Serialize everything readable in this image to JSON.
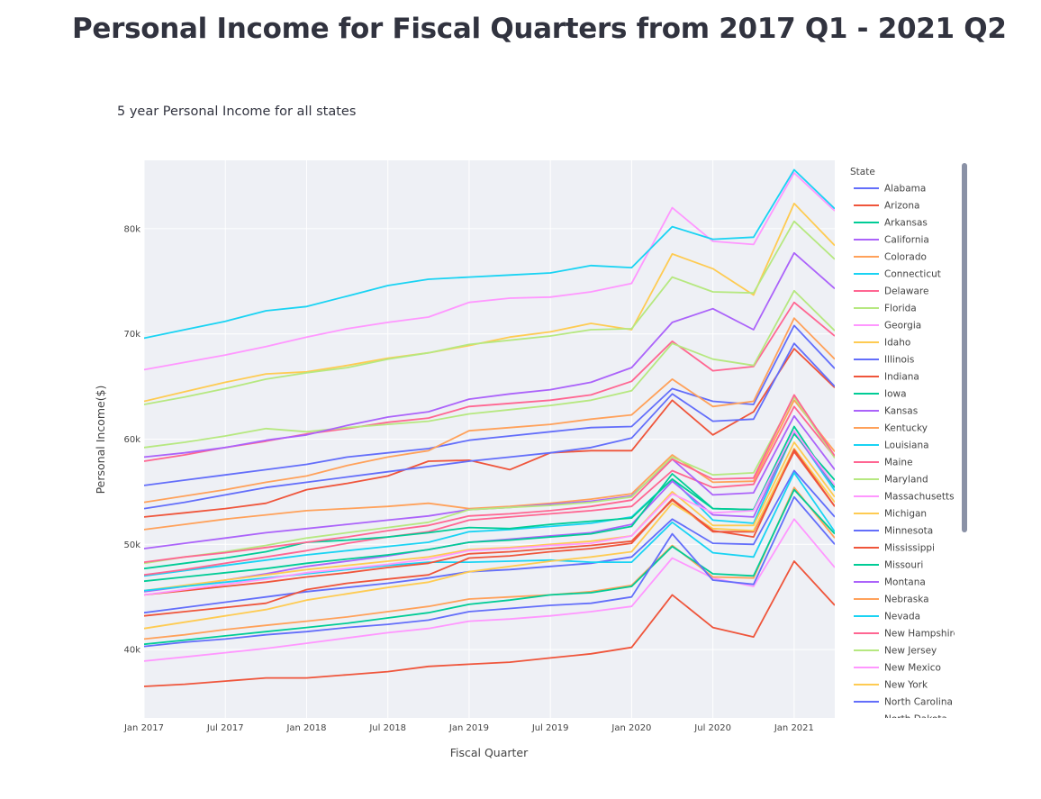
{
  "page": {
    "title": "Personal Income for Fiscal Quarters from 2017 Q1 - 2021 Q2"
  },
  "chart_data": {
    "type": "line",
    "title": "5 year Personal Income for all states",
    "xlabel": "Fiscal Quarter",
    "ylabel": "Personal Income($)",
    "legend_title": "State",
    "legend_placement": "right",
    "grid": true,
    "plot_background": "#eef0f5",
    "ylim": [
      33500,
      86500
    ],
    "y_ticks": [
      40000,
      50000,
      60000,
      70000,
      80000
    ],
    "y_tick_labels": [
      "40k",
      "50k",
      "60k",
      "70k",
      "80k"
    ],
    "x_tick_labels": [
      "Jan 2017",
      "Jul 2017",
      "Jan 2018",
      "Jul 2018",
      "Jan 2019",
      "Jul 2019",
      "Jan 2020",
      "Jul 2020",
      "Jan 2021"
    ],
    "x": [
      "2017 Q1",
      "2017 Q2",
      "2017 Q3",
      "2017 Q4",
      "2018 Q1",
      "2018 Q2",
      "2018 Q3",
      "2018 Q4",
      "2019 Q1",
      "2019 Q2",
      "2019 Q3",
      "2019 Q4",
      "2020 Q1",
      "2020 Q2",
      "2020 Q3",
      "2020 Q4",
      "2021 Q1",
      "2021 Q2"
    ],
    "series": [
      {
        "name": "Alabama",
        "color": "#636efa",
        "values": [
          40300,
          40700,
          41000,
          41400,
          41700,
          42100,
          42400,
          42800,
          43600,
          43900,
          44200,
          44400,
          45000,
          51000,
          46600,
          46200,
          54500,
          50000
        ]
      },
      {
        "name": "Arizona",
        "color": "#ef553b",
        "values": [
          43200,
          43600,
          44000,
          44400,
          45700,
          46300,
          46700,
          47100,
          48700,
          48900,
          49300,
          49600,
          50100,
          54300,
          51300,
          50700,
          59000,
          53600
        ]
      },
      {
        "name": "Arkansas",
        "color": "#00cc96",
        "values": [
          40500,
          40900,
          41300,
          41700,
          42100,
          42500,
          43000,
          43500,
          44300,
          44700,
          45200,
          45400,
          46000,
          49800,
          47200,
          47000,
          55200,
          51000
        ]
      },
      {
        "name": "California",
        "color": "#ab63fa",
        "values": [
          58300,
          58700,
          59200,
          59900,
          60400,
          61300,
          62100,
          62600,
          63800,
          64300,
          64700,
          65400,
          66800,
          71100,
          72400,
          70400,
          77700,
          74300
        ]
      },
      {
        "name": "Colorado",
        "color": "#ffa15a",
        "values": [
          54000,
          54600,
          55200,
          55900,
          56500,
          57500,
          58300,
          58900,
          60800,
          61100,
          61400,
          61900,
          62300,
          65700,
          63100,
          63600,
          71500,
          67600
        ]
      },
      {
        "name": "Connecticut",
        "color": "#19d3f3",
        "values": [
          69600,
          70400,
          71200,
          72200,
          72600,
          73600,
          74600,
          75200,
          75400,
          75600,
          75800,
          76500,
          76300,
          80200,
          79000,
          79200,
          85600,
          81900
        ]
      },
      {
        "name": "Delaware",
        "color": "#ff6692",
        "values": [
          48300,
          48800,
          49200,
          49700,
          50200,
          50700,
          51300,
          51800,
          52700,
          52900,
          53200,
          53600,
          54200,
          58100,
          56200,
          56300,
          64200,
          58400
        ]
      },
      {
        "name": "Florida",
        "color": "#b6e880",
        "values": [
          48200,
          48800,
          49300,
          49900,
          50600,
          51100,
          51600,
          52100,
          53300,
          53500,
          53700,
          54000,
          54500,
          58300,
          56600,
          56800,
          64000,
          58200
        ]
      },
      {
        "name": "Georgia",
        "color": "#ff97ff",
        "values": [
          45200,
          45700,
          46200,
          46700,
          47300,
          47700,
          48100,
          48600,
          49400,
          49600,
          49900,
          50100,
          50800,
          54800,
          53000,
          53200,
          60800,
          55600
        ]
      },
      {
        "name": "Idaho",
        "color": "#fecb52",
        "values": [
          42000,
          42600,
          43200,
          43800,
          44700,
          45300,
          45900,
          46400,
          47400,
          47900,
          48400,
          48800,
          49300,
          53900,
          51500,
          51300,
          59100,
          54000
        ]
      },
      {
        "name": "Illinois",
        "color": "#636efa",
        "values": [
          55600,
          56100,
          56600,
          57100,
          57600,
          58300,
          58700,
          59100,
          59900,
          60300,
          60700,
          61100,
          61200,
          64800,
          63600,
          63300,
          70800,
          66700
        ]
      },
      {
        "name": "Indiana",
        "color": "#ef553b",
        "values": [
          45200,
          45600,
          46000,
          46400,
          46900,
          47300,
          47800,
          48200,
          49100,
          49300,
          49600,
          49900,
          50300,
          54200,
          51200,
          51200,
          58800,
          53600
        ]
      },
      {
        "name": "Iowa",
        "color": "#00cc96",
        "values": [
          47700,
          48200,
          48700,
          49300,
          50200,
          50400,
          50700,
          51100,
          51600,
          51500,
          51900,
          52200,
          52500,
          56200,
          53400,
          53300,
          61200,
          55400
        ]
      },
      {
        "name": "Kansas",
        "color": "#ab63fa",
        "values": [
          49600,
          50100,
          50600,
          51100,
          51500,
          51900,
          52300,
          52700,
          53300,
          53500,
          53800,
          54100,
          54600,
          58100,
          54700,
          54900,
          62200,
          57100
        ]
      },
      {
        "name": "Kentucky",
        "color": "#ffa15a",
        "values": [
          41000,
          41400,
          41900,
          42300,
          42700,
          43100,
          43600,
          44100,
          44800,
          45000,
          45200,
          45500,
          46100,
          49900,
          46900,
          46800,
          55400,
          50600
        ]
      },
      {
        "name": "Louisiana",
        "color": "#19d3f3",
        "values": [
          45600,
          46000,
          46400,
          46800,
          47200,
          47600,
          48000,
          48300,
          48300,
          48400,
          48500,
          48300,
          48300,
          52100,
          49200,
          48800,
          56800,
          51200
        ]
      },
      {
        "name": "Maine",
        "color": "#ff6692",
        "values": [
          47100,
          47600,
          48200,
          48800,
          49400,
          50100,
          50700,
          51200,
          52300,
          52600,
          52900,
          53200,
          53600,
          57000,
          55400,
          55700,
          63100,
          58300
        ]
      },
      {
        "name": "Maryland",
        "color": "#b6e880",
        "values": [
          59200,
          59700,
          60300,
          61000,
          60700,
          61100,
          61400,
          61700,
          62400,
          62800,
          63200,
          63700,
          64600,
          69100,
          67600,
          67000,
          74100,
          70300
        ]
      },
      {
        "name": "Massachusetts",
        "color": "#ff97ff",
        "values": [
          66600,
          67300,
          68000,
          68800,
          69700,
          70500,
          71100,
          71600,
          73000,
          73400,
          73500,
          74000,
          74800,
          82000,
          78800,
          78500,
          85300,
          81700
        ]
      },
      {
        "name": "Michigan",
        "color": "#fecb52",
        "values": [
          45600,
          46100,
          46600,
          47100,
          47600,
          48000,
          48400,
          48800,
          49500,
          49700,
          50000,
          50300,
          50800,
          55000,
          51800,
          51800,
          59700,
          54500
        ]
      },
      {
        "name": "Minnesota",
        "color": "#636efa",
        "values": [
          53400,
          54000,
          54700,
          55400,
          55900,
          56400,
          56900,
          57400,
          57900,
          58300,
          58700,
          59200,
          60100,
          64300,
          61700,
          61900,
          69100,
          65000
        ]
      },
      {
        "name": "Mississippi",
        "color": "#ef553b",
        "values": [
          36500,
          36700,
          37000,
          37300,
          37300,
          37600,
          37900,
          38400,
          38600,
          38800,
          39200,
          39600,
          40200,
          45200,
          42100,
          41200,
          48400,
          44200
        ]
      },
      {
        "name": "Missouri",
        "color": "#00cc96",
        "values": [
          46500,
          46900,
          47300,
          47700,
          48200,
          48600,
          49000,
          49500,
          50200,
          50400,
          50700,
          51000,
          51700,
          56700,
          53400,
          53300,
          60500,
          56100
        ]
      },
      {
        "name": "Montana",
        "color": "#ab63fa",
        "values": [
          45500,
          46000,
          46600,
          47200,
          47900,
          48400,
          48900,
          49500,
          50200,
          50500,
          50800,
          51100,
          51900,
          56000,
          52800,
          52600,
          60600,
          55400
        ]
      },
      {
        "name": "Nebraska",
        "color": "#ffa15a",
        "values": [
          51400,
          51900,
          52400,
          52800,
          53200,
          53400,
          53600,
          53900,
          53400,
          53600,
          53900,
          54300,
          54800,
          58500,
          55900,
          56000,
          63700,
          58800
        ]
      },
      {
        "name": "Nevada",
        "color": "#19d3f3",
        "values": [
          47000,
          47500,
          48000,
          48500,
          49000,
          49400,
          49800,
          50200,
          51200,
          51400,
          51700,
          52000,
          52600,
          56200,
          52300,
          52000,
          60700,
          55100
        ]
      },
      {
        "name": "New Hampshire",
        "color": "#ff6692",
        "values": [
          57900,
          58500,
          59200,
          59800,
          60500,
          61000,
          61600,
          62000,
          63100,
          63400,
          63700,
          64200,
          65500,
          69300,
          66500,
          66900,
          73000,
          69800
        ]
      },
      {
        "name": "New Jersey",
        "color": "#b6e880",
        "values": [
          63300,
          64000,
          64800,
          65700,
          66300,
          66800,
          67600,
          68200,
          69000,
          69400,
          69800,
          70400,
          70500,
          75400,
          74000,
          73900,
          80700,
          77100
        ]
      },
      {
        "name": "New Mexico",
        "color": "#ff97ff",
        "values": [
          38900,
          39300,
          39700,
          40100,
          40600,
          41100,
          41600,
          42000,
          42700,
          42900,
          43200,
          43600,
          44100,
          48700,
          46800,
          46000,
          52400,
          47800
        ]
      },
      {
        "name": "New York",
        "color": "#fecb52",
        "values": [
          63600,
          64500,
          65400,
          66200,
          66400,
          67000,
          67700,
          68200,
          68900,
          69700,
          70200,
          71000,
          70400,
          77600,
          76200,
          73700,
          82400,
          78400
        ]
      },
      {
        "name": "North Carolina",
        "color": "#636efa",
        "values": [
          43500,
          44000,
          44500,
          45000,
          45500,
          45900,
          46300,
          46800,
          47400,
          47600,
          47900,
          48200,
          48800,
          52400,
          50100,
          50000,
          57000,
          52600
        ]
      },
      {
        "name": "North Dakota",
        "color": "#ef553b",
        "values": [
          52600,
          53000,
          53400,
          53900,
          55200,
          55800,
          56500,
          57900,
          58000,
          57100,
          58700,
          58900,
          58900,
          63700,
          60400,
          62600,
          68600,
          64900
        ]
      }
    ]
  }
}
